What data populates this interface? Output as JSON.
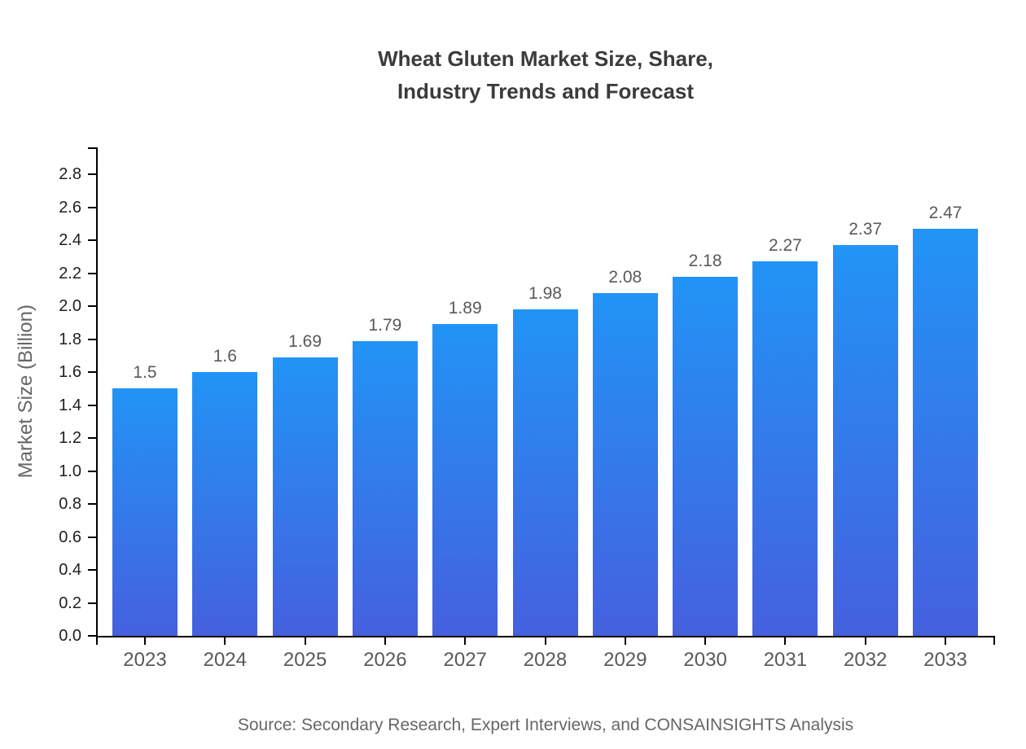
{
  "title": {
    "line1": "Wheat Gluten Market Size, Share,",
    "line2": "Industry Trends and Forecast"
  },
  "source_note": "Source: Secondary Research, Expert Interviews, and CONSAINSIGHTS Analysis",
  "chart_data": {
    "type": "bar",
    "title": "Wheat Gluten Market Size, Share, Industry Trends and Forecast",
    "categories": [
      "2023",
      "2024",
      "2025",
      "2026",
      "2027",
      "2028",
      "2029",
      "2030",
      "2031",
      "2032",
      "2033"
    ],
    "values": [
      1.5,
      1.6,
      1.69,
      1.79,
      1.89,
      1.98,
      2.08,
      2.18,
      2.27,
      2.37,
      2.47
    ],
    "value_labels": [
      "1.5",
      "1.6",
      "1.69",
      "1.79",
      "1.89",
      "1.98",
      "2.08",
      "2.18",
      "2.27",
      "2.37",
      "2.47"
    ],
    "xlabel": "",
    "ylabel": "Market Size (Billion)",
    "ylim": [
      0.0,
      2.963
    ],
    "yticks": [
      "0.0",
      "0.2",
      "0.4",
      "0.6",
      "0.8",
      "1.0",
      "1.2",
      "1.4",
      "1.6",
      "1.8",
      "2.0",
      "2.2",
      "2.4",
      "2.6",
      "2.8"
    ],
    "grid": false,
    "legend": "none",
    "colors": {
      "bar_gradient_top": "#2294f6",
      "bar_gradient_bottom": "#4560de",
      "axis": "#000000",
      "ytick_label": "#1f1f1f",
      "xtick_label": "#595959",
      "value_label": "#595959",
      "axis_title": "#666666",
      "title": "#3b3b3b",
      "background": "#ffffff"
    }
  }
}
